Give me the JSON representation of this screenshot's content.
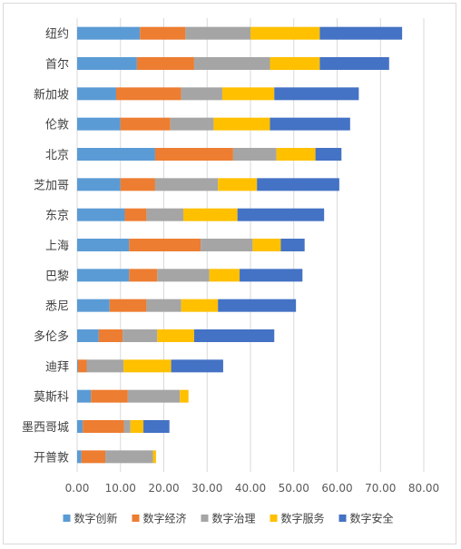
{
  "chart_data": {
    "type": "bar",
    "orientation": "horizontal",
    "stacked": true,
    "categories": [
      "纽约",
      "首尔",
      "新加坡",
      "伦敦",
      "北京",
      "芝加哥",
      "东京",
      "上海",
      "巴黎",
      "悉尼",
      "多伦多",
      "迪拜",
      "莫斯科",
      "墨西哥城",
      "开普敦"
    ],
    "series": [
      {
        "name": "数字创新",
        "color": "#5b9bd5",
        "values": [
          14.5,
          13.8,
          9.0,
          10.0,
          18.0,
          10.0,
          11.0,
          12.0,
          12.0,
          7.5,
          5.0,
          0.2,
          3.2,
          1.3,
          1.0
        ]
      },
      {
        "name": "数字经济",
        "color": "#ed7d31",
        "values": [
          10.5,
          13.2,
          15.0,
          11.5,
          18.0,
          8.0,
          5.0,
          16.5,
          6.5,
          8.5,
          5.5,
          2.0,
          8.5,
          9.5,
          5.5
        ]
      },
      {
        "name": "数字治理",
        "color": "#a5a5a5",
        "values": [
          15.0,
          17.5,
          9.5,
          10.0,
          10.0,
          14.5,
          8.5,
          12.0,
          12.0,
          8.0,
          8.0,
          8.5,
          12.0,
          1.5,
          11.0
        ]
      },
      {
        "name": "数字服务",
        "color": "#ffc000",
        "values": [
          16.0,
          11.5,
          12.0,
          13.0,
          9.0,
          9.0,
          12.5,
          6.5,
          7.0,
          8.5,
          8.5,
          11.0,
          2.0,
          3.0,
          0.7
        ]
      },
      {
        "name": "数字安全",
        "color": "#4472c4",
        "values": [
          19.0,
          16.0,
          19.5,
          18.5,
          6.0,
          19.0,
          20.0,
          5.5,
          14.5,
          18.0,
          18.5,
          12.0,
          0,
          6.0,
          0
        ]
      }
    ],
    "xlim": [
      0,
      80
    ],
    "xticks": [
      "0.00",
      "10.00",
      "20.00",
      "30.00",
      "40.00",
      "50.00",
      "60.00",
      "70.00",
      "80.00"
    ],
    "grid": true,
    "legend_position": "bottom"
  }
}
